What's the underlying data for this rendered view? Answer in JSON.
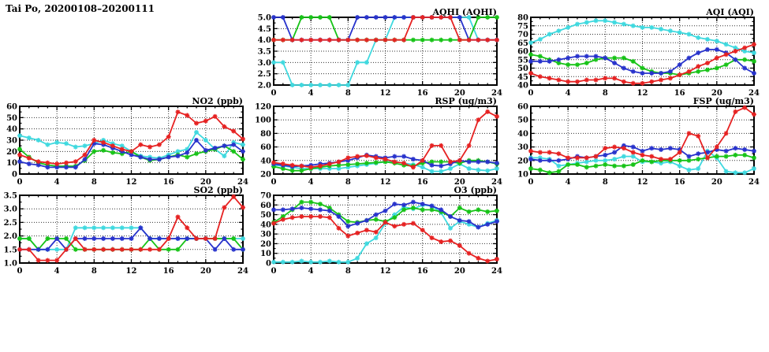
{
  "page": {
    "title": "Tai Po, 20200108–20200111"
  },
  "series_colors": {
    "red": "#e62222",
    "green": "#17c317",
    "blue": "#2833cc",
    "cyan": "#3fd9df"
  },
  "chart_data": [
    {
      "name": "aqhi",
      "type": "line",
      "title": "AQHI (AQHI)",
      "xlabel": "",
      "ylabel": "",
      "grid": true,
      "legend": "none",
      "xlim": [
        0,
        24
      ],
      "xticks": [
        0,
        4,
        8,
        12,
        16,
        20,
        24
      ],
      "ylim": [
        2.0,
        5.0
      ],
      "ytick_vals": [
        2.0,
        2.5,
        3.0,
        3.5,
        4.0,
        4.5,
        5.0
      ],
      "ytick_labels": [
        "2.0",
        "2.5",
        "3.0",
        "3.5",
        "4.0",
        "4.5",
        "5.0"
      ],
      "series": [
        {
          "name": "series-cyan",
          "color": "cyan",
          "values": [
            3,
            3,
            2,
            2,
            2,
            2,
            2,
            2,
            2,
            3,
            3,
            4,
            4,
            5,
            5,
            5,
            5,
            5,
            5,
            5,
            5,
            5,
            4,
            4,
            4
          ]
        },
        {
          "name": "series-green",
          "color": "green",
          "values": [
            4,
            4,
            4,
            5,
            5,
            5,
            5,
            4,
            4,
            4,
            4,
            4,
            4,
            4,
            4,
            4,
            4,
            4,
            4,
            4,
            4,
            4,
            5,
            5,
            5
          ]
        },
        {
          "name": "series-blue",
          "color": "blue",
          "values": [
            5,
            5,
            4,
            4,
            4,
            4,
            4,
            4,
            4,
            5,
            5,
            5,
            5,
            5,
            5,
            5,
            5,
            5,
            5,
            5,
            5,
            4,
            4,
            4,
            4
          ]
        },
        {
          "name": "series-red",
          "color": "red",
          "values": [
            4,
            4,
            4,
            4,
            4,
            4,
            4,
            4,
            4,
            4,
            4,
            4,
            4,
            4,
            4,
            5,
            5,
            5,
            5,
            5,
            4,
            4,
            4,
            4,
            4
          ]
        }
      ]
    },
    {
      "name": "aqi",
      "type": "line",
      "title": "AQI (AQI)",
      "xlabel": "",
      "ylabel": "",
      "grid": true,
      "legend": "none",
      "xlim": [
        0,
        24
      ],
      "xticks": [
        0,
        4,
        8,
        12,
        16,
        20,
        24
      ],
      "ylim": [
        40,
        80
      ],
      "ytick_vals": [
        40,
        45,
        50,
        55,
        60,
        65,
        70,
        75,
        80
      ],
      "ytick_labels": [
        "40",
        "45",
        "50",
        "55",
        "60",
        "65",
        "70",
        "75",
        "80"
      ],
      "series": [
        {
          "name": "series-cyan",
          "color": "cyan",
          "values": [
            65,
            67,
            70,
            72,
            74,
            76,
            77,
            78,
            78,
            77,
            76,
            75,
            74,
            74,
            73,
            72,
            71,
            70,
            68,
            67,
            66,
            64,
            62,
            60,
            59
          ]
        },
        {
          "name": "series-green",
          "color": "green",
          "values": [
            58,
            57,
            55,
            53,
            52,
            52,
            53,
            55,
            56,
            56,
            56,
            54,
            50,
            48,
            47,
            47,
            46,
            47,
            48,
            49,
            50,
            52,
            55,
            55,
            54
          ]
        },
        {
          "name": "series-blue",
          "color": "blue",
          "values": [
            54,
            54,
            54,
            55,
            56,
            57,
            57,
            57,
            56,
            53,
            50,
            48,
            47,
            47,
            47,
            48,
            52,
            56,
            59,
            61,
            61,
            59,
            55,
            50,
            47
          ]
        },
        {
          "name": "series-red",
          "color": "red",
          "values": [
            47,
            45,
            44,
            43,
            42,
            42,
            43,
            43,
            44,
            44,
            42,
            41,
            41,
            42,
            43,
            44,
            46,
            48,
            51,
            53,
            56,
            58,
            60,
            62,
            64
          ]
        }
      ]
    },
    {
      "name": "no2",
      "type": "line",
      "title": "NO2 (ppb)",
      "xlabel": "",
      "ylabel": "",
      "grid": true,
      "legend": "none",
      "xlim": [
        0,
        24
      ],
      "xticks": [
        0,
        4,
        8,
        12,
        16,
        20,
        24
      ],
      "ylim": [
        0,
        60
      ],
      "ytick_vals": [
        0,
        10,
        20,
        30,
        40,
        50,
        60
      ],
      "ytick_labels": [
        "0",
        "10",
        "20",
        "30",
        "40",
        "50",
        "60"
      ],
      "series": [
        {
          "name": "series-cyan",
          "color": "cyan",
          "values": [
            34,
            32,
            30,
            26,
            28,
            27,
            24,
            25,
            27,
            30,
            27,
            25,
            20,
            16,
            15,
            14,
            17,
            20,
            22,
            37,
            30,
            22,
            16,
            28,
            26
          ]
        },
        {
          "name": "series-green",
          "color": "green",
          "values": [
            22,
            15,
            10,
            8,
            7,
            7,
            7,
            12,
            20,
            21,
            19,
            18,
            20,
            15,
            12,
            13,
            15,
            17,
            15,
            18,
            20,
            22,
            25,
            20,
            13
          ]
        },
        {
          "name": "series-blue",
          "color": "blue",
          "values": [
            11,
            9,
            8,
            6,
            6,
            6,
            6,
            13,
            27,
            26,
            23,
            20,
            17,
            15,
            13,
            13,
            15,
            16,
            19,
            30,
            21,
            23,
            25,
            26,
            20
          ]
        },
        {
          "name": "series-red",
          "color": "red",
          "values": [
            17,
            14,
            11,
            10,
            9,
            10,
            11,
            17,
            30,
            28,
            25,
            22,
            20,
            26,
            24,
            26,
            33,
            55,
            52,
            45,
            47,
            51,
            42,
            38,
            31
          ]
        }
      ]
    },
    {
      "name": "rsp",
      "type": "line",
      "title": "RSP (ug/m3)",
      "xlabel": "",
      "ylabel": "",
      "grid": true,
      "legend": "none",
      "xlim": [
        0,
        24
      ],
      "xticks": [
        0,
        4,
        8,
        12,
        16,
        20,
        24
      ],
      "ylim": [
        20,
        120
      ],
      "ytick_vals": [
        20,
        40,
        60,
        80,
        100,
        120
      ],
      "ytick_labels": [
        "20",
        "40",
        "60",
        "80",
        "100",
        "120"
      ],
      "series": [
        {
          "name": "series-cyan",
          "color": "cyan",
          "values": [
            33,
            32,
            30,
            28,
            28,
            28,
            28,
            28,
            30,
            32,
            34,
            36,
            38,
            38,
            36,
            34,
            30,
            24,
            24,
            28,
            35,
            28,
            26,
            25,
            28
          ]
        },
        {
          "name": "series-green",
          "color": "green",
          "values": [
            31,
            28,
            25,
            25,
            28,
            30,
            32,
            33,
            34,
            35,
            36,
            37,
            38,
            36,
            33,
            32,
            36,
            38,
            38,
            38,
            36,
            40,
            40,
            38,
            35
          ]
        },
        {
          "name": "series-blue",
          "color": "blue",
          "values": [
            35,
            33,
            31,
            32,
            33,
            35,
            36,
            38,
            40,
            44,
            48,
            46,
            44,
            46,
            46,
            42,
            40,
            33,
            32,
            35,
            40,
            38,
            38,
            38,
            36
          ]
        },
        {
          "name": "series-red",
          "color": "red",
          "values": [
            37,
            35,
            33,
            32,
            30,
            32,
            35,
            38,
            44,
            46,
            47,
            44,
            42,
            38,
            36,
            30,
            40,
            62,
            62,
            38,
            40,
            62,
            100,
            112,
            105
          ]
        }
      ]
    },
    {
      "name": "fsp",
      "type": "line",
      "title": "FSP (ug/m3)",
      "xlabel": "",
      "ylabel": "",
      "grid": true,
      "legend": "none",
      "xlim": [
        0,
        24
      ],
      "xticks": [
        0,
        4,
        8,
        12,
        16,
        20,
        24
      ],
      "ylim": [
        10,
        60
      ],
      "ytick_vals": [
        10,
        20,
        30,
        40,
        50,
        60
      ],
      "ytick_labels": [
        "10",
        "20",
        "30",
        "40",
        "50",
        "60"
      ],
      "series": [
        {
          "name": "series-cyan",
          "color": "cyan",
          "values": [
            22,
            22,
            21,
            16,
            17,
            18,
            19,
            20,
            20,
            21,
            23,
            23,
            19,
            19,
            18,
            19,
            16,
            13,
            14,
            27,
            22,
            12,
            11,
            11,
            14
          ]
        },
        {
          "name": "series-green",
          "color": "green",
          "values": [
            14,
            13,
            11,
            12,
            17,
            17,
            15,
            16,
            17,
            16,
            16,
            17,
            20,
            19,
            20,
            20,
            20,
            20,
            21,
            22,
            23,
            23,
            24,
            24,
            22
          ]
        },
        {
          "name": "series-blue",
          "color": "blue",
          "values": [
            21,
            20,
            20,
            20,
            21,
            23,
            22,
            23,
            24,
            26,
            31,
            30,
            27,
            29,
            28,
            29,
            28,
            23,
            25,
            26,
            28,
            27,
            29,
            28,
            27
          ]
        },
        {
          "name": "series-red",
          "color": "red",
          "values": [
            27,
            26,
            26,
            25,
            22,
            22,
            22,
            23,
            29,
            30,
            29,
            26,
            24,
            23,
            21,
            21,
            26,
            40,
            38,
            22,
            30,
            40,
            56,
            59,
            54
          ]
        }
      ]
    },
    {
      "name": "so2",
      "type": "line",
      "title": "SO2 (ppb)",
      "xlabel": "",
      "ylabel": "",
      "grid": true,
      "legend": "none",
      "xlim": [
        0,
        24
      ],
      "xticks": [
        0,
        4,
        8,
        12,
        16,
        20,
        24
      ],
      "ylim": [
        1.0,
        3.5
      ],
      "ytick_vals": [
        1.0,
        1.5,
        2.0,
        2.5,
        3.0,
        3.5
      ],
      "ytick_labels": [
        "1.0",
        "1.5",
        "2.0",
        "2.5",
        "3.0",
        "3.5"
      ],
      "series": [
        {
          "name": "series-cyan",
          "color": "cyan",
          "values": [
            1.9,
            1.9,
            1.5,
            1.5,
            1.5,
            1.5,
            2.3,
            2.3,
            2.3,
            2.3,
            2.3,
            2.3,
            2.3,
            2.3,
            1.9,
            1.9,
            1.9,
            1.9,
            1.9,
            1.9,
            1.9,
            1.9,
            1.9,
            1.9,
            1.9
          ]
        },
        {
          "name": "series-green",
          "color": "green",
          "values": [
            1.9,
            1.9,
            1.5,
            1.9,
            1.9,
            1.9,
            1.5,
            1.5,
            1.5,
            1.5,
            1.5,
            1.5,
            1.5,
            1.5,
            1.9,
            1.5,
            1.5,
            1.5,
            1.9,
            1.9,
            1.9,
            1.9,
            1.9,
            1.9,
            1.5
          ]
        },
        {
          "name": "series-blue",
          "color": "blue",
          "values": [
            1.5,
            1.5,
            1.5,
            1.5,
            1.9,
            1.5,
            1.9,
            1.9,
            1.9,
            1.9,
            1.9,
            1.9,
            1.9,
            2.3,
            1.9,
            1.9,
            1.9,
            1.9,
            1.9,
            1.9,
            1.9,
            1.5,
            1.9,
            1.5,
            1.5
          ]
        },
        {
          "name": "series-red",
          "color": "red",
          "values": [
            1.5,
            1.5,
            1.1,
            1.1,
            1.1,
            1.5,
            1.9,
            1.5,
            1.5,
            1.5,
            1.5,
            1.5,
            1.5,
            1.5,
            1.5,
            1.5,
            1.9,
            2.7,
            2.3,
            1.9,
            1.9,
            1.9,
            3.05,
            3.45,
            3.05
          ]
        }
      ]
    },
    {
      "name": "o3",
      "type": "line",
      "title": "O3 (ppb)",
      "xlabel": "",
      "ylabel": "",
      "grid": true,
      "legend": "none",
      "xlim": [
        0,
        24
      ],
      "xticks": [
        0,
        4,
        8,
        12,
        16,
        20,
        24
      ],
      "ylim": [
        0,
        70
      ],
      "ytick_vals": [
        0,
        10,
        20,
        30,
        40,
        50,
        60,
        70
      ],
      "ytick_labels": [
        "0",
        "10",
        "20",
        "30",
        "40",
        "50",
        "60",
        "70"
      ],
      "series": [
        {
          "name": "series-cyan",
          "color": "cyan",
          "values": [
            1,
            1,
            1,
            2,
            1,
            1,
            2,
            1,
            1,
            5,
            20,
            26,
            41,
            50,
            58,
            56,
            60,
            59,
            52,
            36,
            43,
            40,
            37,
            41,
            44
          ]
        },
        {
          "name": "series-green",
          "color": "green",
          "values": [
            42,
            48,
            55,
            63,
            63,
            61,
            57,
            50,
            43,
            42,
            44,
            45,
            43,
            47,
            55,
            57,
            55,
            55,
            53,
            48,
            57,
            53,
            55,
            53,
            54
          ]
        },
        {
          "name": "series-blue",
          "color": "blue",
          "values": [
            55,
            55,
            56,
            57,
            56,
            55,
            54,
            48,
            38,
            41,
            44,
            50,
            54,
            61,
            60,
            63,
            61,
            59,
            55,
            48,
            44,
            43,
            37,
            40,
            43
          ]
        },
        {
          "name": "series-red",
          "color": "red",
          "values": [
            41,
            45,
            47,
            48,
            48,
            48,
            47,
            36,
            28,
            31,
            34,
            32,
            42,
            38,
            40,
            41,
            34,
            26,
            22,
            23,
            18,
            10,
            5,
            2,
            4
          ]
        }
      ]
    }
  ]
}
